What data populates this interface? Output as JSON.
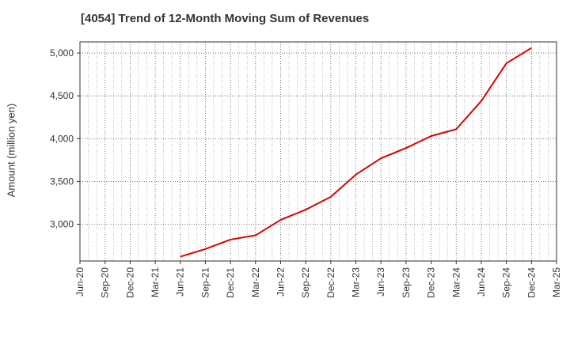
{
  "chart_data": {
    "type": "line",
    "title": "[4054]  Trend of 12-Month Moving Sum of Revenues",
    "xlabel": "",
    "ylabel": "Amount (million yen)",
    "x_ticks": [
      "Jun-20",
      "Sep-20",
      "Dec-20",
      "Mar-21",
      "Jun-21",
      "Sep-21",
      "Dec-21",
      "Mar-22",
      "Jun-22",
      "Sep-22",
      "Dec-22",
      "Mar-23",
      "Jun-23",
      "Sep-23",
      "Dec-23",
      "Mar-24",
      "Jun-24",
      "Sep-24",
      "Dec-24",
      "Mar-25"
    ],
    "y_ticks": [
      3000,
      3500,
      4000,
      4500,
      5000
    ],
    "y_tick_labels": [
      "3,000",
      "3,500",
      "4,000",
      "4,500",
      "5,000"
    ],
    "ylim": [
      2570,
      5130
    ],
    "grid": true,
    "series": [
      {
        "color": "#e00000",
        "x": [
          "Jun-21",
          "Sep-21",
          "Dec-21",
          "Mar-22",
          "Jun-22",
          "Sep-22",
          "Dec-22",
          "Mar-23",
          "Jun-23",
          "Sep-23",
          "Dec-23",
          "Mar-24",
          "Jun-24",
          "Sep-24",
          "Dec-24"
        ],
        "values": [
          2620,
          2710,
          2820,
          2870,
          3050,
          3170,
          3320,
          3580,
          3770,
          3890,
          4030,
          4110,
          4440,
          4880,
          5060
        ]
      }
    ]
  }
}
